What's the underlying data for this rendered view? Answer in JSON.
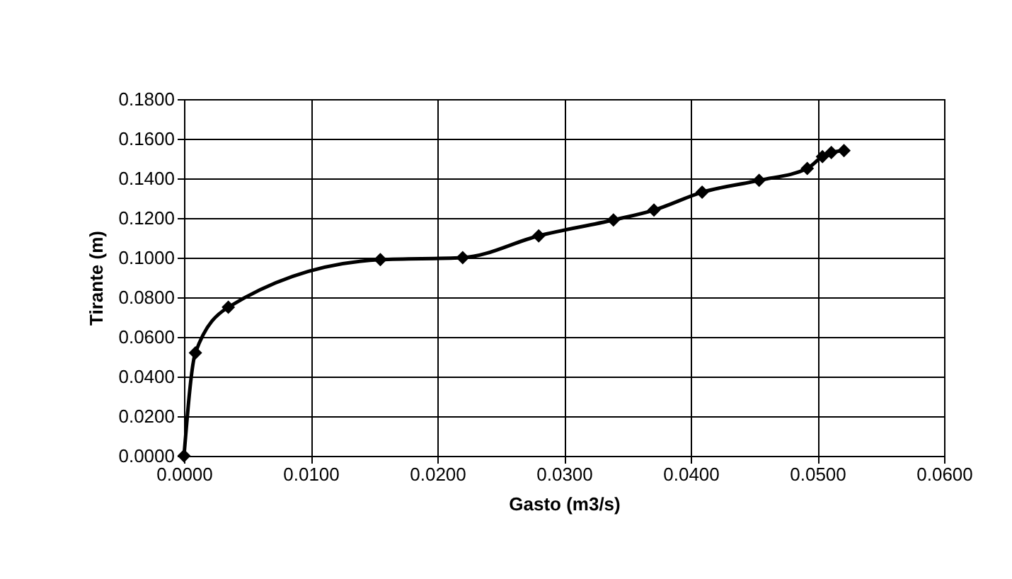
{
  "chart_data": {
    "type": "line",
    "xlabel": "Gasto (m3/s)",
    "ylabel": "Tirante (m)",
    "x": [
      0,
      0.0009,
      0.0035,
      0.0155,
      0.022,
      0.028,
      0.0339,
      0.0371,
      0.0409,
      0.0454,
      0.0492,
      0.0504,
      0.0511,
      0.0521
    ],
    "series": [
      {
        "color": "#000000",
        "values": [
          0,
          0.052,
          0.075,
          0.099,
          0.1,
          0.111,
          0.119,
          0.124,
          0.133,
          0.139,
          0.145,
          0.151,
          0.153,
          0.154
        ]
      }
    ],
    "xlim": [
      0,
      0.06
    ],
    "xticks": [
      {
        "value": 0,
        "label": "0.0000"
      },
      {
        "value": 0.01,
        "label": "0.0100"
      },
      {
        "value": 0.02,
        "label": "0.0200"
      },
      {
        "value": 0.03,
        "label": "0.0300"
      },
      {
        "value": 0.04,
        "label": "0.0400"
      },
      {
        "value": 0.05,
        "label": "0.0500"
      },
      {
        "value": 0.06,
        "label": "0.0600"
      }
    ],
    "ylim": [
      0,
      0.18
    ],
    "yticks": [
      {
        "value": 0,
        "label": "0.0000"
      },
      {
        "value": 0.02,
        "label": "0.0200"
      },
      {
        "value": 0.04,
        "label": "0.0400"
      },
      {
        "value": 0.06,
        "label": "0.0600"
      },
      {
        "value": 0.08,
        "label": "0.0800"
      },
      {
        "value": 0.1,
        "label": "0.1000"
      },
      {
        "value": 0.12,
        "label": "0.1200"
      },
      {
        "value": 0.14,
        "label": "0.1400"
      },
      {
        "value": 0.16,
        "label": "0.1600"
      },
      {
        "value": 0.18,
        "label": "0.1800"
      }
    ],
    "grid": true,
    "marker": "diamond",
    "line_style": "solid"
  }
}
